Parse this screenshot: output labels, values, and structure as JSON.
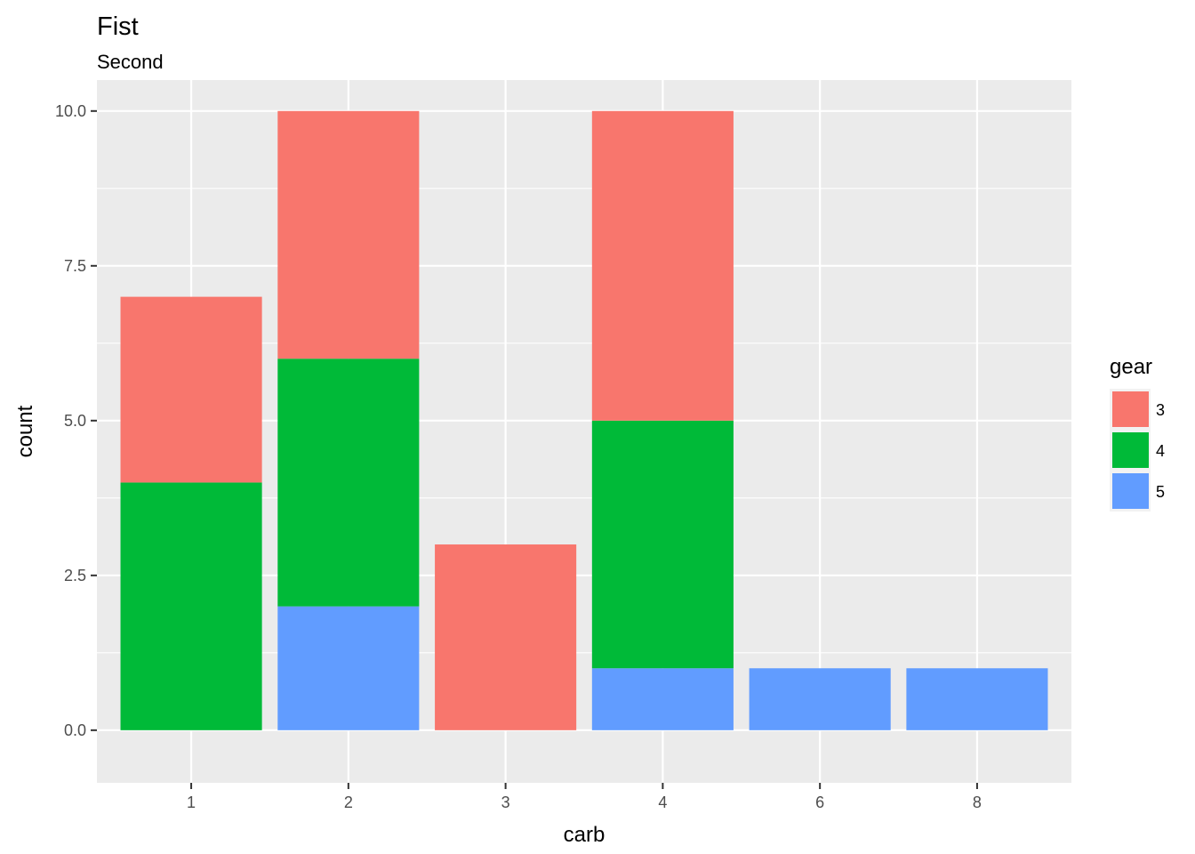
{
  "chart_data": {
    "type": "bar",
    "stacked": true,
    "title": "Fist",
    "subtitle": "Second",
    "xlabel": "carb",
    "ylabel": "count",
    "categories": [
      "1",
      "2",
      "3",
      "4",
      "6",
      "8"
    ],
    "ylim": [
      -0.85,
      10.5
    ],
    "yticks": [
      0.0,
      2.5,
      5.0,
      7.5,
      10.0
    ],
    "ytick_labels": [
      "0.0",
      "2.5",
      "5.0",
      "7.5",
      "10.0"
    ],
    "grid": true,
    "legend": {
      "title": "gear",
      "position": "right"
    },
    "series": [
      {
        "name": "3",
        "color": "#F8766D",
        "values": [
          3,
          4,
          3,
          5,
          0,
          0
        ]
      },
      {
        "name": "4",
        "color": "#00BA38",
        "values": [
          4,
          4,
          0,
          4,
          0,
          0
        ]
      },
      {
        "name": "5",
        "color": "#619CFF",
        "values": [
          0,
          2,
          0,
          1,
          1,
          1
        ]
      }
    ]
  }
}
